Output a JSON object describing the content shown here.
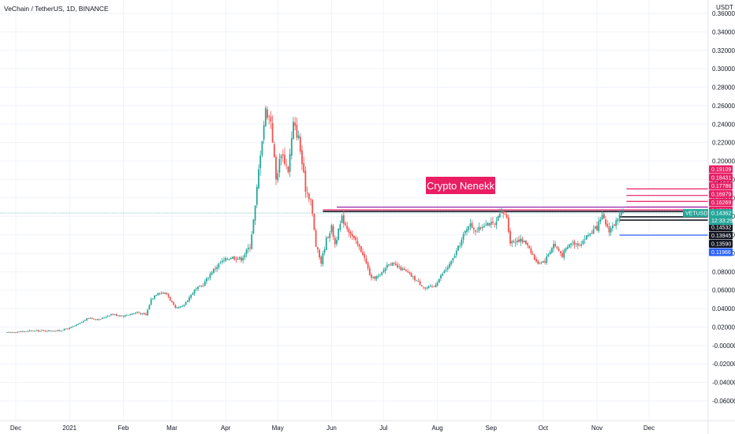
{
  "header": {
    "title": "VeChain / TetherUS, 1D, BINANCE",
    "currency": "USDT"
  },
  "watermark": {
    "text": "Crypto Nenekk",
    "bg": "#e91e63"
  },
  "colors": {
    "up": "#26a69a",
    "down": "#ef5350",
    "grid": "#f0f3fa",
    "axis_text": "#131722"
  },
  "chart_data": {
    "type": "candlestick",
    "title": "VeChain / TetherUS, 1D, BINANCE",
    "ylabel": "USDT",
    "ylim": [
      -0.07,
      0.37
    ],
    "y_ticks": [
      "0.36000",
      "0.34000",
      "0.32000",
      "0.30000",
      "0.28000",
      "0.26000",
      "0.24000",
      "0.22000",
      "0.20000",
      "0.18000",
      "0.16000",
      "0.14000",
      "0.12000",
      "0.10000",
      "0.08000",
      "0.06000",
      "0.04000",
      "0.02000",
      "-0.00000",
      "-0.02000",
      "-0.04000",
      "-0.06000"
    ],
    "x_ticks": [
      {
        "label": "Dec",
        "t": 0.0
      },
      {
        "label": "2021",
        "t": 31.0
      },
      {
        "label": "Feb",
        "t": 62.0
      },
      {
        "label": "Mar",
        "t": 90.0
      },
      {
        "label": "Apr",
        "t": 121.0
      },
      {
        "label": "May",
        "t": 151.0
      },
      {
        "label": "Jun",
        "t": 182.0
      },
      {
        "label": "Jul",
        "t": 212.0
      },
      {
        "label": "Aug",
        "t": 243.0
      },
      {
        "label": "Sep",
        "t": 274.0
      },
      {
        "label": "Oct",
        "t": 304.0
      },
      {
        "label": "Nov",
        "t": 335.0
      },
      {
        "label": "Dec",
        "t": 365.0
      }
    ],
    "t_range": [
      -5,
      400
    ],
    "price_key": [
      [
        -5,
        0.014
      ],
      [
        10,
        0.016
      ],
      [
        25,
        0.016
      ],
      [
        31,
        0.019
      ],
      [
        35,
        0.022
      ],
      [
        42,
        0.03
      ],
      [
        48,
        0.028
      ],
      [
        55,
        0.034
      ],
      [
        62,
        0.032
      ],
      [
        70,
        0.036
      ],
      [
        75,
        0.033
      ],
      [
        78,
        0.05
      ],
      [
        82,
        0.058
      ],
      [
        87,
        0.056
      ],
      [
        92,
        0.04
      ],
      [
        96,
        0.042
      ],
      [
        103,
        0.06
      ],
      [
        108,
        0.066
      ],
      [
        113,
        0.08
      ],
      [
        118,
        0.09
      ],
      [
        124,
        0.096
      ],
      [
        130,
        0.094
      ],
      [
        135,
        0.108
      ],
      [
        138,
        0.15
      ],
      [
        141,
        0.21
      ],
      [
        144,
        0.255
      ],
      [
        147,
        0.245
      ],
      [
        150,
        0.18
      ],
      [
        153,
        0.21
      ],
      [
        157,
        0.19
      ],
      [
        160,
        0.24
      ],
      [
        163,
        0.225
      ],
      [
        167,
        0.17
      ],
      [
        170,
        0.158
      ],
      [
        173,
        0.108
      ],
      [
        176,
        0.09
      ],
      [
        179,
        0.115
      ],
      [
        182,
        0.128
      ],
      [
        184,
        0.11
      ],
      [
        188,
        0.138
      ],
      [
        191,
        0.128
      ],
      [
        195,
        0.115
      ],
      [
        200,
        0.1
      ],
      [
        205,
        0.072
      ],
      [
        210,
        0.076
      ],
      [
        215,
        0.09
      ],
      [
        220,
        0.085
      ],
      [
        225,
        0.08
      ],
      [
        230,
        0.072
      ],
      [
        236,
        0.062
      ],
      [
        241,
        0.064
      ],
      [
        246,
        0.078
      ],
      [
        251,
        0.09
      ],
      [
        256,
        0.11
      ],
      [
        261,
        0.132
      ],
      [
        266,
        0.124
      ],
      [
        271,
        0.134
      ],
      [
        276,
        0.13
      ],
      [
        280,
        0.145
      ],
      [
        283,
        0.14
      ],
      [
        285,
        0.112
      ],
      [
        290,
        0.115
      ],
      [
        295,
        0.11
      ],
      [
        300,
        0.09
      ],
      [
        305,
        0.092
      ],
      [
        310,
        0.11
      ],
      [
        315,
        0.098
      ],
      [
        320,
        0.112
      ],
      [
        325,
        0.11
      ],
      [
        330,
        0.12
      ],
      [
        335,
        0.128
      ],
      [
        338,
        0.139
      ],
      [
        342,
        0.125
      ],
      [
        347,
        0.136
      ],
      [
        350,
        0.1436
      ]
    ],
    "last_time": 350,
    "levels": [
      {
        "value": 0.19109,
        "label": "0.19109",
        "color": "#e91e63"
      },
      {
        "value": 0.18431,
        "label": "0.18431",
        "color": "#e91e63"
      },
      {
        "value": 0.17786,
        "label": "0.17786",
        "color": "#e91e63"
      },
      {
        "value": 0.16979,
        "label": "0.16979",
        "color": "#e91e63",
        "line_from": 352
      },
      {
        "value": 0.16269,
        "label": "0.16269",
        "color": "#e91e63",
        "line_from": 352
      },
      {
        "value": 0.15623,
        "label": "0.15623",
        "color": "#e91e63",
        "line_from": 352
      },
      {
        "value": 0.1501,
        "label": "0.15010",
        "color": "#e91e63",
        "line_from": 352
      },
      {
        "value": 0.14532,
        "label": "0.14532",
        "color": "#131722",
        "line_from": 177
      },
      {
        "value": 0.13945,
        "label": "0.13945",
        "color": "#131722",
        "line_from": 348
      },
      {
        "value": 0.1359,
        "label": "0.13590",
        "color": "#131722",
        "line_from": 348
      },
      {
        "value": 0.11966,
        "label": "0.11966",
        "color": "#2962ff",
        "line_from": 348
      }
    ],
    "extra_lines": [
      {
        "value": 0.15,
        "from": 185,
        "color": "#9c27b0"
      },
      {
        "value": 0.147,
        "from": 177,
        "color": "#e91e63"
      }
    ],
    "current_price": {
      "symbol": "VETUSDT",
      "value": "0.14362",
      "price": 0.14362,
      "countdown": "12:33:29",
      "color": "#26a69a"
    }
  }
}
